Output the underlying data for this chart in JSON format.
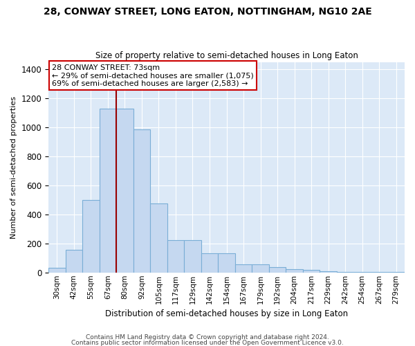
{
  "title1": "28, CONWAY STREET, LONG EATON, NOTTINGHAM, NG10 2AE",
  "title2": "Size of property relative to semi-detached houses in Long Eaton",
  "xlabel": "Distribution of semi-detached houses by size in Long Eaton",
  "ylabel": "Number of semi-detached properties",
  "categories": [
    "30sqm",
    "42sqm",
    "55sqm",
    "67sqm",
    "80sqm",
    "92sqm",
    "105sqm",
    "117sqm",
    "129sqm",
    "142sqm",
    "154sqm",
    "167sqm",
    "179sqm",
    "192sqm",
    "204sqm",
    "217sqm",
    "229sqm",
    "242sqm",
    "254sqm",
    "267sqm",
    "279sqm"
  ],
  "values": [
    30,
    155,
    500,
    1130,
    1130,
    985,
    475,
    225,
    225,
    130,
    130,
    55,
    55,
    35,
    25,
    20,
    10,
    5,
    3,
    2,
    2
  ],
  "bar_color": "#c5d8f0",
  "bar_edge_color": "#7aaed6",
  "vline_color": "#990000",
  "annotation_title": "28 CONWAY STREET: 73sqm",
  "annotation_line1": "← 29% of semi-detached houses are smaller (1,075)",
  "annotation_line2": "69% of semi-detached houses are larger (2,583) →",
  "annotation_box_color": "#ffffff",
  "annotation_box_edge": "#cc0000",
  "ylim": [
    0,
    1450
  ],
  "plot_bg_color": "#dce9f7",
  "fig_bg_color": "#ffffff",
  "grid_color": "#ffffff",
  "footer1": "Contains HM Land Registry data © Crown copyright and database right 2024.",
  "footer2": "Contains public sector information licensed under the Open Government Licence v3.0."
}
